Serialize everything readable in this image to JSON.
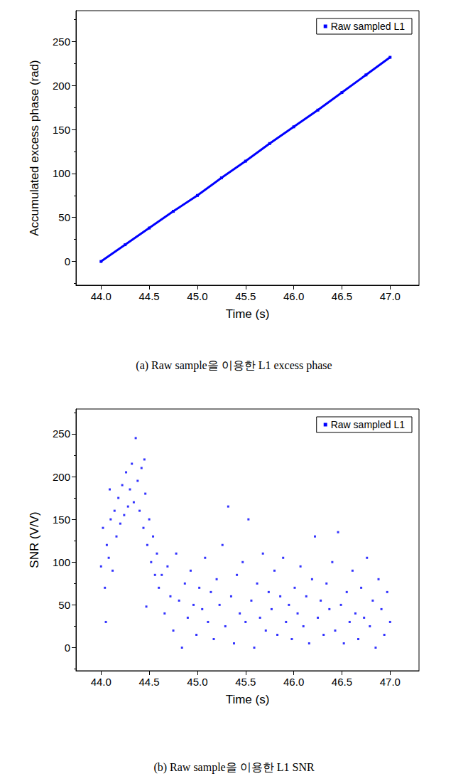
{
  "chart_data": [
    {
      "type": "line",
      "title": "(a) Raw sample을 이용한 L1 excess phase",
      "xlabel": "Time (s)",
      "ylabel": "Accumulated excess phase (rad)",
      "x": [
        44.0,
        44.25,
        44.5,
        44.75,
        45.0,
        45.25,
        45.5,
        45.75,
        46.0,
        46.25,
        46.5,
        46.75,
        47.0
      ],
      "series": [
        {
          "name": "Raw sampled L1",
          "color": "#0000ff",
          "marker": "square",
          "values": [
            0,
            19,
            38,
            57,
            75,
            95,
            114,
            134,
            153,
            172,
            192,
            212,
            232
          ]
        }
      ],
      "xlim": [
        43.74,
        47.3
      ],
      "ylim": [
        -27,
        285
      ],
      "xticks": [
        {
          "value": 44,
          "label": "44.0"
        },
        44.5,
        {
          "value": 45,
          "label": "45.0"
        },
        45.5,
        {
          "value": 46,
          "label": "46.0"
        },
        46.5,
        {
          "value": 47,
          "label": "47.0"
        }
      ],
      "yticks": [
        0,
        50,
        100,
        150,
        200,
        250
      ],
      "legend": "upper right",
      "grid": false
    },
    {
      "type": "scatter",
      "title": "(b) Raw sample을 이용한 L1 SNR",
      "xlabel": "Time (s)",
      "ylabel": "SNR (V/V)",
      "x": [
        44.0,
        44.02,
        44.04,
        44.05,
        44.06,
        44.08,
        44.09,
        44.1,
        44.12,
        44.14,
        44.16,
        44.18,
        44.2,
        44.22,
        44.24,
        44.26,
        44.28,
        44.3,
        44.32,
        44.34,
        44.36,
        44.38,
        44.4,
        44.42,
        44.44,
        44.45,
        44.46,
        44.47,
        44.48,
        44.5,
        44.52,
        44.54,
        44.56,
        44.58,
        44.6,
        44.63,
        44.66,
        44.69,
        44.72,
        44.75,
        44.78,
        44.81,
        44.84,
        44.87,
        44.9,
        44.93,
        44.96,
        44.99,
        45.02,
        45.05,
        45.08,
        45.11,
        45.14,
        45.17,
        45.2,
        45.23,
        45.26,
        45.29,
        45.32,
        45.35,
        45.38,
        45.41,
        45.44,
        45.47,
        45.5,
        45.53,
        45.56,
        45.59,
        45.62,
        45.65,
        45.68,
        45.71,
        45.74,
        45.77,
        45.8,
        45.83,
        45.86,
        45.89,
        45.92,
        45.95,
        45.98,
        46.01,
        46.04,
        46.07,
        46.1,
        46.13,
        46.16,
        46.19,
        46.22,
        46.25,
        46.28,
        46.31,
        46.34,
        46.37,
        46.4,
        46.43,
        46.46,
        46.49,
        46.52,
        46.55,
        46.58,
        46.61,
        46.64,
        46.67,
        46.7,
        46.73,
        46.76,
        46.79,
        46.82,
        46.85,
        46.88,
        46.91,
        46.94,
        46.97,
        47.0
      ],
      "series": [
        {
          "name": "Raw sampled L1",
          "color": "#0000ff",
          "marker": "square",
          "values": [
            95,
            140,
            70,
            30,
            120,
            105,
            185,
            150,
            90,
            160,
            130,
            175,
            145,
            190,
            155,
            205,
            165,
            185,
            215,
            170,
            245,
            195,
            160,
            210,
            140,
            220,
            180,
            48,
            120,
            150,
            100,
            130,
            85,
            110,
            70,
            85,
            40,
            95,
            60,
            20,
            110,
            55,
            0,
            75,
            35,
            90,
            50,
            15,
            70,
            45,
            105,
            30,
            65,
            10,
            80,
            50,
            120,
            25,
            165,
            60,
            5,
            85,
            40,
            100,
            30,
            150,
            55,
            0,
            75,
            35,
            110,
            20,
            65,
            45,
            90,
            15,
            60,
            105,
            30,
            50,
            10,
            70,
            40,
            95,
            25,
            60,
            5,
            80,
            130,
            35,
            55,
            15,
            75,
            45,
            100,
            20,
            135,
            50,
            5,
            65,
            30,
            90,
            40,
            10,
            70,
            35,
            105,
            25,
            55,
            0,
            80,
            45,
            15,
            65,
            30
          ]
        }
      ],
      "xlim": [
        43.74,
        47.3
      ],
      "ylim": [
        -27,
        279
      ],
      "xticks": [
        {
          "value": 44,
          "label": "44.0"
        },
        44.5,
        {
          "value": 45,
          "label": "45.0"
        },
        45.5,
        {
          "value": 46,
          "label": "46.0"
        },
        46.5,
        {
          "value": 47,
          "label": "47.0"
        }
      ],
      "yticks": [
        0,
        50,
        100,
        150,
        200,
        250
      ],
      "legend": "upper right",
      "grid": false
    }
  ]
}
